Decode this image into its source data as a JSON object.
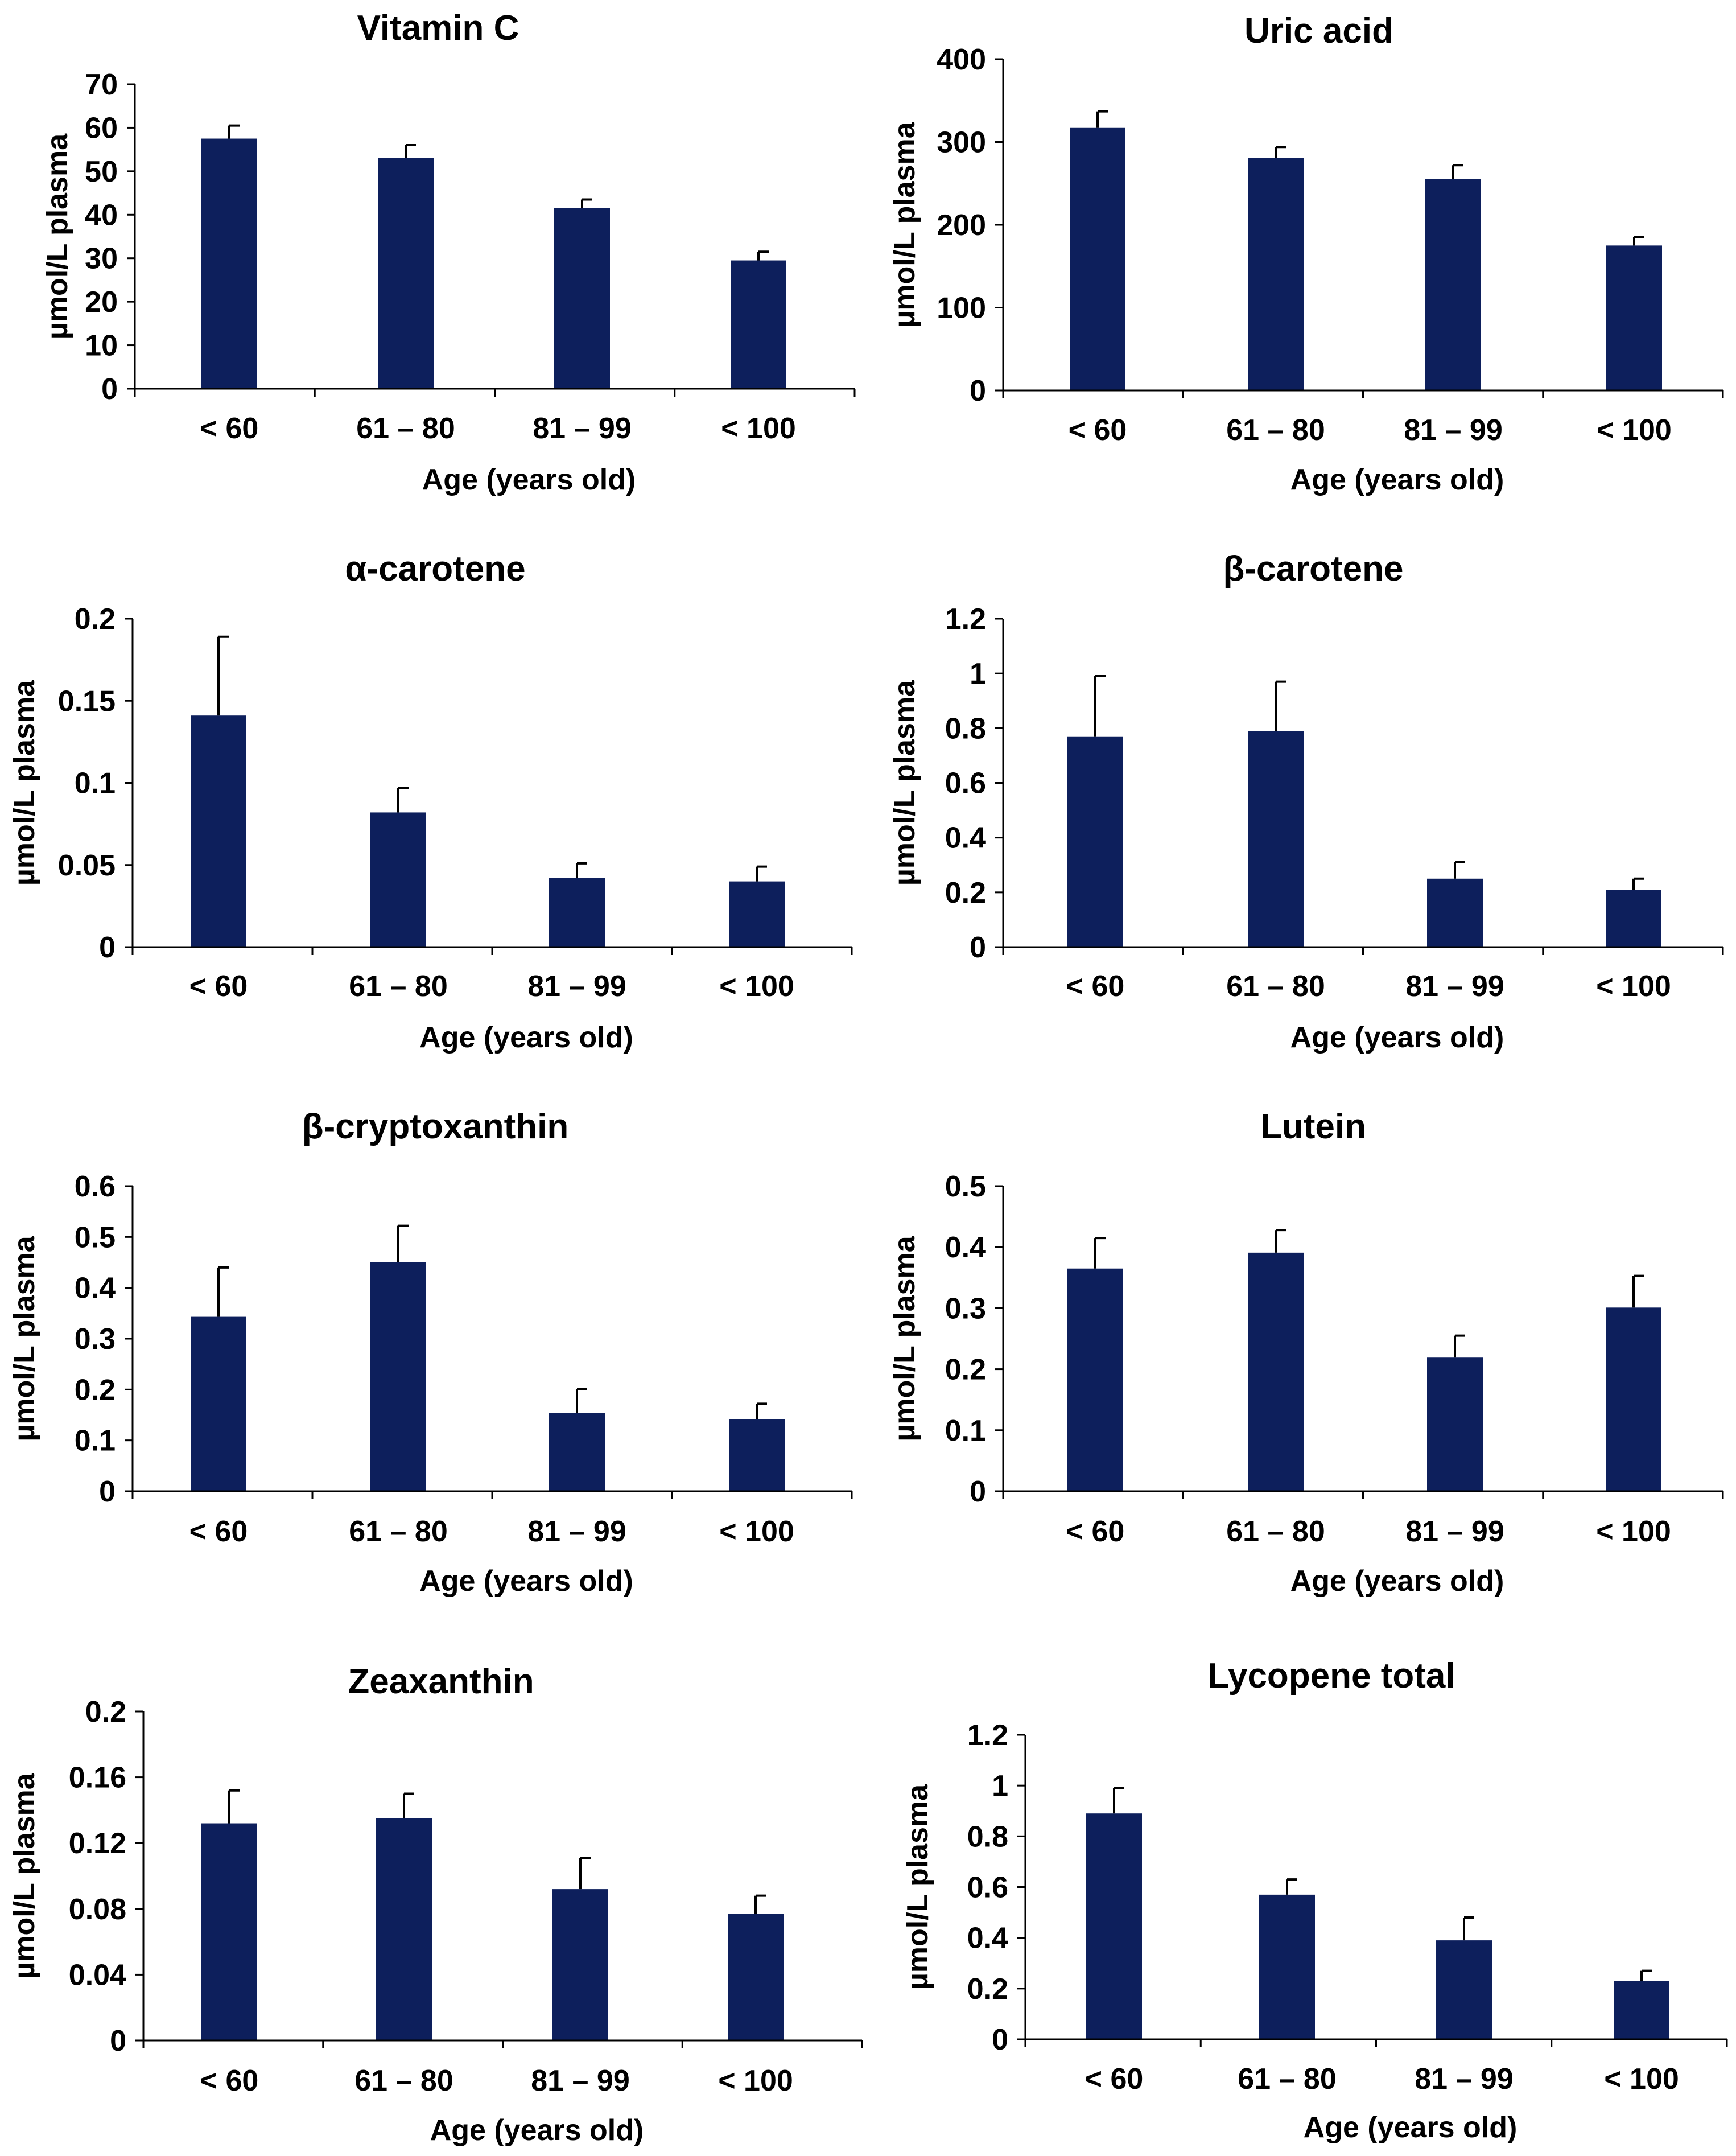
{
  "chart_data": [
    {
      "type": "bar",
      "title": "Vitamin C",
      "categories": [
        "< 60",
        "61 – 80",
        "81 – 99",
        "< 100"
      ],
      "values": [
        57.5,
        53,
        41.5,
        29.5
      ],
      "errors": [
        3,
        3,
        2,
        2
      ],
      "ylim": [
        0,
        70
      ],
      "yticks": [
        0,
        10,
        20,
        30,
        40,
        50,
        60,
        70
      ],
      "ytick_labels": [
        "0",
        "10",
        "20",
        "30",
        "40",
        "50",
        "60",
        "70"
      ],
      "xlabel": "Age (years old)",
      "ylabel": "µmol/L plasma"
    },
    {
      "type": "bar",
      "title": "Uric acid",
      "categories": [
        "< 60",
        "61 – 80",
        "81 – 99",
        "< 100"
      ],
      "values": [
        317,
        281,
        255,
        175
      ],
      "errors": [
        20,
        13,
        17,
        10
      ],
      "ylim": [
        0,
        400
      ],
      "yticks": [
        0,
        100,
        200,
        300,
        400
      ],
      "ytick_labels": [
        "0",
        "100",
        "200",
        "300",
        "400"
      ],
      "xlabel": "Age (years old)",
      "ylabel": "µmol/L plasma"
    },
    {
      "type": "bar",
      "title": "α-carotene",
      "categories": [
        "< 60",
        "61 – 80",
        "81 – 99",
        "< 100"
      ],
      "values": [
        0.141,
        0.082,
        0.042,
        0.04
      ],
      "errors": [
        0.048,
        0.015,
        0.009,
        0.009
      ],
      "ylim": [
        0,
        0.2
      ],
      "yticks": [
        0,
        0.05,
        0.1,
        0.15,
        0.2
      ],
      "ytick_labels": [
        "0",
        "0.05",
        "0.1",
        "0.15",
        "0.2"
      ],
      "xlabel": "Age (years old)",
      "ylabel": "µmol/L plasma"
    },
    {
      "type": "bar",
      "title": "β-carotene",
      "categories": [
        "< 60",
        "61 – 80",
        "81 – 99",
        "< 100"
      ],
      "values": [
        0.77,
        0.79,
        0.25,
        0.21
      ],
      "errors": [
        0.22,
        0.18,
        0.06,
        0.04
      ],
      "ylim": [
        0,
        1.2
      ],
      "yticks": [
        0,
        0.2,
        0.4,
        0.6,
        0.8,
        1,
        1.2
      ],
      "ytick_labels": [
        "0",
        "0.2",
        "0.4",
        "0.6",
        "0.8",
        "1",
        "1.2"
      ],
      "xlabel": "Age (years old)",
      "ylabel": "µmol/L plasma"
    },
    {
      "type": "bar",
      "title": "β-cryptoxanthin",
      "categories": [
        "< 60",
        "61 – 80",
        "81 – 99",
        "< 100"
      ],
      "values": [
        0.343,
        0.45,
        0.154,
        0.142
      ],
      "errors": [
        0.097,
        0.072,
        0.047,
        0.03
      ],
      "ylim": [
        0,
        0.6
      ],
      "yticks": [
        0,
        0.1,
        0.2,
        0.3,
        0.4,
        0.5,
        0.6
      ],
      "ytick_labels": [
        "0",
        "0.1",
        "0.2",
        "0.3",
        "0.4",
        "0.5",
        "0.6"
      ],
      "xlabel": "Age (years old)",
      "ylabel": "µmol/L plasma"
    },
    {
      "type": "bar",
      "title": "Lutein",
      "categories": [
        "< 60",
        "61 – 80",
        "81 – 99",
        "< 100"
      ],
      "values": [
        0.365,
        0.391,
        0.219,
        0.301
      ],
      "errors": [
        0.05,
        0.037,
        0.036,
        0.052
      ],
      "ylim": [
        0,
        0.5
      ],
      "yticks": [
        0,
        0.1,
        0.2,
        0.3,
        0.4,
        0.5
      ],
      "ytick_labels": [
        "0",
        "0.1",
        "0.2",
        "0.3",
        "0.4",
        "0.5"
      ],
      "xlabel": "Age (years old)",
      "ylabel": "µmol/L plasma"
    },
    {
      "type": "bar",
      "title": "Zeaxanthin",
      "categories": [
        "< 60",
        "61 – 80",
        "81 – 99",
        "< 100"
      ],
      "values": [
        0.132,
        0.135,
        0.092,
        0.077
      ],
      "errors": [
        0.02,
        0.015,
        0.019,
        0.011
      ],
      "ylim": [
        0,
        0.2
      ],
      "yticks": [
        0,
        0.04,
        0.08,
        0.12,
        0.16,
        0.2
      ],
      "ytick_labels": [
        "0",
        "0.04",
        "0.08",
        "0.12",
        "0.16",
        "0.2"
      ],
      "xlabel": "Age (years old)",
      "ylabel": "µmol/L plasma"
    },
    {
      "type": "bar",
      "title": "Lycopene total",
      "categories": [
        "< 60",
        "61 – 80",
        "81 – 99",
        "< 100"
      ],
      "values": [
        0.89,
        0.57,
        0.39,
        0.23
      ],
      "errors": [
        0.1,
        0.06,
        0.09,
        0.04
      ],
      "ylim": [
        0,
        1.2
      ],
      "yticks": [
        0,
        0.2,
        0.4,
        0.6,
        0.8,
        1,
        1.2
      ],
      "ytick_labels": [
        "0",
        "0.2",
        "0.4",
        "0.6",
        "0.8",
        "1",
        "1.2"
      ],
      "xlabel": "Age (years old)",
      "ylabel": "µmol/L plasma"
    }
  ]
}
